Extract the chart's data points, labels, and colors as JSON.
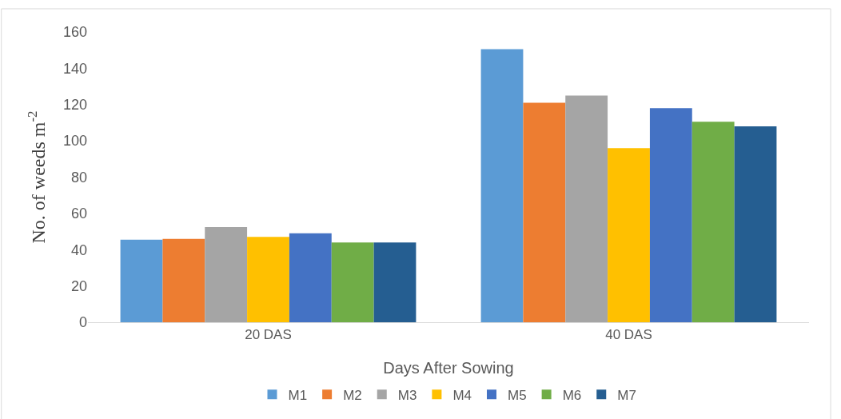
{
  "chart_data": {
    "type": "bar",
    "categories": [
      "20 DAS",
      "40 DAS"
    ],
    "xlabel": "Days After Sowing",
    "ylabel": "No. of weeds m$^{-2}$",
    "ylim": [
      0,
      160
    ],
    "yticks": [
      0,
      20,
      40,
      60,
      80,
      100,
      120,
      140,
      160
    ],
    "grid": false,
    "legend": "bottom",
    "series": [
      {
        "name": "M1",
        "color": "#5b9bd5",
        "values": [
          45.5,
          150.5
        ]
      },
      {
        "name": "M2",
        "color": "#ed7d31",
        "values": [
          46,
          121
        ]
      },
      {
        "name": "M3",
        "color": "#a5a5a5",
        "values": [
          52.5,
          125
        ]
      },
      {
        "name": "M4",
        "color": "#ffc000",
        "values": [
          47,
          96
        ]
      },
      {
        "name": "M5",
        "color": "#4472c4",
        "values": [
          49,
          118
        ]
      },
      {
        "name": "M6",
        "color": "#70ad47",
        "values": [
          44,
          110.5
        ]
      },
      {
        "name": "M7",
        "color": "#255e91",
        "values": [
          44,
          108
        ]
      }
    ]
  }
}
